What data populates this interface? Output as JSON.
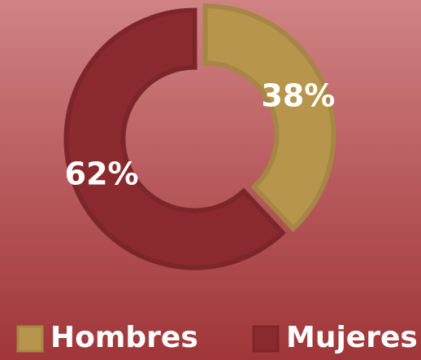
{
  "chart_data": {
    "type": "donut",
    "categories": [
      "Hombres",
      "Mujeres"
    ],
    "values": [
      38,
      62
    ],
    "value_labels": [
      "38%",
      "62%"
    ],
    "colors": [
      "#b8954c",
      "#8a2a2e"
    ],
    "legend": "bottom"
  }
}
